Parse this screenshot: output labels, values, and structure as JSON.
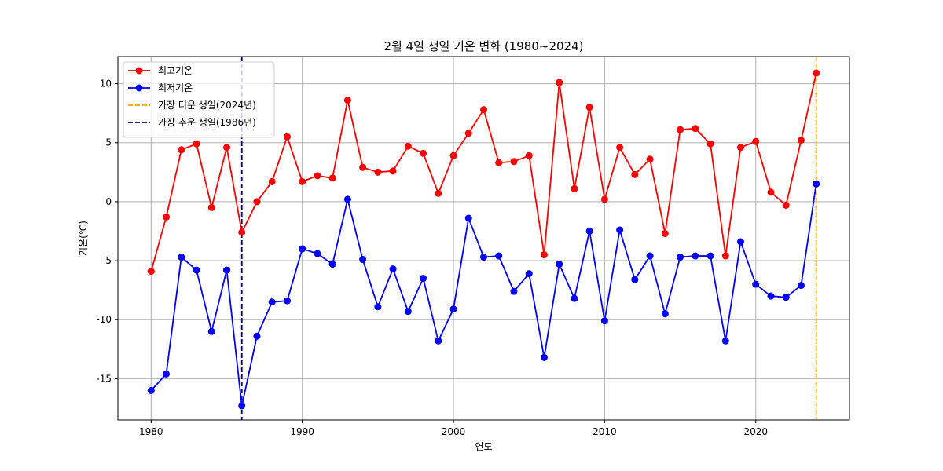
{
  "chart_data": {
    "type": "line",
    "title": "2월 4일 생일 기온 변화 (1980~2024)",
    "xlabel": "연도",
    "ylabel": "기온(℃)",
    "xlim": [
      1977.8,
      2026.2
    ],
    "ylim": [
      -18.5,
      12.3
    ],
    "xticks": [
      1980,
      1990,
      2000,
      2010,
      2020
    ],
    "yticks": [
      10,
      5,
      0,
      -5,
      -10,
      -15
    ],
    "ytick_labels": [
      "10",
      "5",
      "0",
      "-5",
      "-10",
      "-15"
    ],
    "grid": true,
    "legend_position": "upper-left",
    "x": [
      1980,
      1981,
      1982,
      1983,
      1984,
      1985,
      1986,
      1987,
      1988,
      1989,
      1990,
      1991,
      1992,
      1993,
      1994,
      1995,
      1996,
      1997,
      1998,
      1999,
      2000,
      2001,
      2002,
      2003,
      2004,
      2005,
      2006,
      2007,
      2008,
      2009,
      2010,
      2011,
      2012,
      2013,
      2014,
      2015,
      2016,
      2017,
      2018,
      2019,
      2020,
      2021,
      2022,
      2023,
      2024
    ],
    "series": [
      {
        "name": "최고기온",
        "color": "#ff0000",
        "values": [
          -5.9,
          -1.3,
          4.4,
          4.9,
          -0.5,
          4.6,
          -2.6,
          0.0,
          1.7,
          5.5,
          1.7,
          2.2,
          2.0,
          8.6,
          2.9,
          2.5,
          2.6,
          4.7,
          4.1,
          0.7,
          3.9,
          5.8,
          7.8,
          3.3,
          3.4,
          3.9,
          -4.5,
          10.1,
          1.1,
          8.0,
          0.2,
          4.6,
          2.3,
          3.6,
          -2.7,
          6.1,
          6.2,
          4.9,
          -4.6,
          4.6,
          5.1,
          0.8,
          -0.3,
          5.2,
          10.9
        ]
      },
      {
        "name": "최저기온",
        "color": "#0000ff",
        "values": [
          -16.0,
          -14.6,
          -4.7,
          -5.8,
          -11.0,
          -5.8,
          -17.3,
          -11.4,
          -8.5,
          -8.4,
          -4.0,
          -4.4,
          -5.3,
          0.2,
          -4.9,
          -8.9,
          -5.7,
          -9.3,
          -6.5,
          -11.8,
          -9.1,
          -1.4,
          -4.7,
          -4.6,
          -7.6,
          -6.1,
          -13.2,
          -5.3,
          -8.2,
          -2.5,
          -10.1,
          -2.4,
          -6.6,
          -4.6,
          -9.5,
          -4.7,
          -4.6,
          -4.6,
          -11.8,
          -3.4,
          -7.0,
          -8.0,
          -8.1,
          -7.1,
          1.5
        ]
      }
    ],
    "vlines": [
      {
        "name": "가장 더운 생일(2024년)",
        "x": 2024,
        "color": "#ffa500"
      },
      {
        "name": "가장 추운 생일(1986년)",
        "x": 1986,
        "color": "#00008b"
      }
    ]
  }
}
